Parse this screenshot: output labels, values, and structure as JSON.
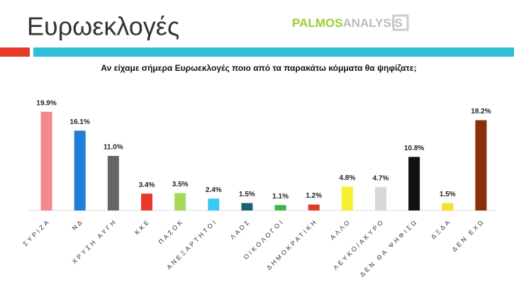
{
  "logo": [
    "PALMOS",
    "ANALYSIS"
  ],
  "chart_data": {
    "type": "bar",
    "title": "Ευρωεκλογές",
    "subtitle": "Αν είχαμε σήμερα Ευρωεκλογές ποιο από τα παρακάτω κόμματα θα ψηφίζατε;",
    "categories": [
      "ΣΥΡΙΖΑ",
      "ΝΔ",
      "ΧΡΥΣΗ ΑΥΓΗ",
      "ΚΚΕ",
      "ΠΑΣΟΚ",
      "ΑΝΕΞΑΡΤΗΤΟΙ",
      "ΛΑΟΣ",
      "ΟΙΚΟΛΟΓΟΙ",
      "ΔΗΜΟΚΡΑΤΙΚΗ",
      "ΑΛΛΟ",
      "ΛΕΥΚΟ/ΑΚΥΡΟ",
      "ΔΕΝ ΘΑ ΨΗΦΙΣΩ",
      "ΔΞΔΑ",
      "ΔΕΝ ΕΧΩ"
    ],
    "values": [
      19.9,
      16.1,
      11.0,
      3.4,
      3.5,
      2.4,
      1.5,
      1.1,
      1.2,
      4.8,
      4.7,
      10.8,
      1.5,
      18.2
    ],
    "value_labels": [
      "19.9%",
      "16.1%",
      "11.0%",
      "3.4%",
      "3.5%",
      "2.4%",
      "1.5%",
      "1.1%",
      "1.2%",
      "4.8%",
      "4.7%",
      "10.8%",
      "1.5%",
      "18.2%"
    ],
    "colors": [
      "#f4898b",
      "#1f7fd8",
      "#666666",
      "#e83a2a",
      "#a6d85a",
      "#3cc8f0",
      "#1c5f78",
      "#3cb54a",
      "#e03a2a",
      "#f5f030",
      "#d8d8d8",
      "#111111",
      "#f5e030",
      "#8b2e0a"
    ],
    "ylim": [
      0,
      20
    ]
  }
}
